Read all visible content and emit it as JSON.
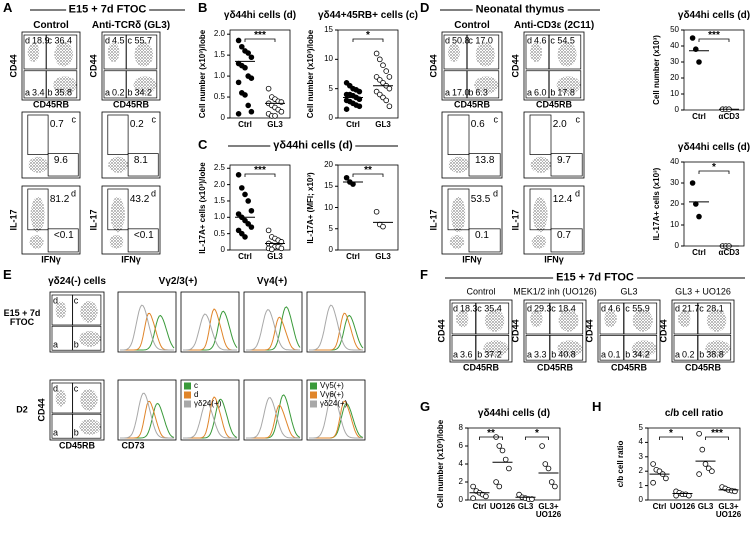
{
  "figure": {
    "quadrant_letters": [
      "a",
      "b",
      "c",
      "d"
    ],
    "A": {
      "label": "A",
      "title": "E15 + 7d FTOC",
      "groups": [
        "Control",
        "Anti-TCRδ (GL3)"
      ],
      "cd44": "CD44",
      "cd45rb": "CD45RB",
      "il17": "IL-17",
      "ifng": "IFNγ",
      "quadrants": [
        {
          "a": "3.4",
          "b": "35.8",
          "c": "36.4",
          "d": "18.9"
        },
        {
          "a": "0.2",
          "b": "34.2",
          "c": "55.7",
          "d": "4.5"
        }
      ],
      "gate_c": [
        {
          "il17": "0.7",
          "ifng": "9.6"
        },
        {
          "il17": "0.2",
          "ifng": "8.1"
        }
      ],
      "gate_d": [
        {
          "il17": "81.2",
          "ifng": "<0.1"
        },
        {
          "il17": "43.2",
          "ifng": "<0.1"
        }
      ]
    },
    "B": {
      "label": "B",
      "plots": [
        {
          "title": "γδ44hi cells (d)",
          "ylabel": "Cell number (x10³)/lobe",
          "ylim": [
            0,
            2.1
          ],
          "yticks": [
            0,
            0.5,
            {
              "value": 1,
              "label": "1.0"
            },
            1.5,
            {
              "value": 2,
              "label": "2.0"
            }
          ],
          "significance": [
            "***"
          ],
          "series": [
            {
              "name": "Ctrl",
              "filled": true,
              "values": [
                1.85,
                1.7,
                1.6,
                1.55,
                1.45,
                1.3,
                1.25,
                1.2,
                1.0,
                0.95,
                0.85,
                0.6,
                0.55,
                0.3,
                0.15,
                0.1
              ],
              "mean": 1.35
            },
            {
              "name": "GL3",
              "filled": false,
              "values": [
                0.7,
                0.5,
                0.45,
                0.4,
                0.38,
                0.35,
                0.3,
                0.25,
                0.2,
                0.15,
                0.1,
                0.05,
                0.05
              ],
              "mean": 0.35
            }
          ]
        },
        {
          "title": "γδ44+45RB+ cells (c)",
          "ylabel": "Cell number (x10³)/lobe",
          "ylim": [
            0,
            15
          ],
          "yticks": [
            0,
            5,
            10,
            15
          ],
          "significance": [
            "*"
          ],
          "series": [
            {
              "name": "Ctrl",
              "filled": true,
              "values": [
                6,
                5.5,
                5,
                4.8,
                4.5,
                4,
                4,
                3.8,
                3.5,
                3.2,
                3,
                2.8,
                2.5,
                2.2,
                2,
                1.5
              ],
              "mean": 3.5
            },
            {
              "name": "GL3",
              "filled": false,
              "values": [
                11,
                10,
                9,
                8,
                7,
                7,
                6.5,
                6,
                5.5,
                5,
                4.5,
                4,
                3.5,
                3,
                2
              ],
              "mean": 5.5
            }
          ]
        }
      ]
    },
    "C": {
      "label": "C",
      "header": "γδ44hi cells (d)",
      "plots": [
        {
          "ylabel": "IL-17A+ cells (x10³)/lobe",
          "ylim": [
            0,
            2.6
          ],
          "yticks": [
            0,
            0.5,
            {
              "value": 1,
              "label": "1.0"
            },
            1.5,
            {
              "value": 2,
              "label": "2.0"
            },
            2.5
          ],
          "significance": [
            "***"
          ],
          "series": [
            {
              "name": "Ctrl",
              "filled": true,
              "values": [
                2.3,
                1.9,
                1.7,
                1.5,
                1.2,
                1.1,
                1.0,
                0.9,
                0.8,
                0.7,
                0.6,
                0.5,
                0.4
              ],
              "mean": 1.0
            },
            {
              "name": "GL3",
              "filled": false,
              "values": [
                0.6,
                0.4,
                0.35,
                0.3,
                0.25,
                0.2,
                0.15,
                0.1,
                0.1,
                0.05,
                0.05,
                0.02
              ],
              "mean": 0.2
            }
          ]
        },
        {
          "ylabel": "IL-17A+ (MFI; x10³)",
          "ylim": [
            0,
            20
          ],
          "yticks": [
            0,
            5,
            10,
            15,
            20
          ],
          "significance": [
            "**"
          ],
          "series": [
            {
              "name": "Ctrl",
              "filled": true,
              "values": [
                17,
                16,
                15.5
              ],
              "mean": 16
            },
            {
              "name": "GL3",
              "filled": false,
              "values": [
                9,
                6,
                5.5
              ],
              "mean": 6.5
            }
          ]
        }
      ]
    },
    "D": {
      "label": "D",
      "title": "Neonatal thymus",
      "groups": [
        "Control",
        "Anti-CD3ε (2C11)"
      ],
      "cd44": "CD44",
      "cd45rb": "CD45RB",
      "il17": "IL-17",
      "ifng": "IFNγ",
      "quadrants": [
        {
          "a": "17.0",
          "b": "6.3",
          "c": "17.0",
          "d": "50.8"
        },
        {
          "a": "6.0",
          "b": "17.8",
          "c": "54.5",
          "d": "4.6"
        }
      ],
      "gate_c": [
        {
          "il17": "0.6",
          "ifng": "13.8"
        },
        {
          "il17": "2.0",
          "ifng": "9.7"
        }
      ],
      "gate_d": [
        {
          "il17": "53.5",
          "ifng": "0.1"
        },
        {
          "il17": "12.4",
          "ifng": "0.7"
        }
      ],
      "plots": [
        {
          "title": "γδ44hi cells (d)",
          "ylabel": "Cell number (x10³)",
          "ylim": [
            0,
            50
          ],
          "yticks": [
            0,
            10,
            20,
            30,
            40,
            50
          ],
          "significance": [
            "***"
          ],
          "series": [
            {
              "name": "Ctrl",
              "filled": true,
              "values": [
                45,
                38,
                30
              ],
              "mean": 37
            },
            {
              "name": "αCD3",
              "filled": false,
              "values": [
                0.5,
                0.5,
                0.5
              ],
              "mean": 0.5
            }
          ]
        },
        {
          "title": "γδ44hi cells (d)",
          "ylabel": "IL-17A+ cells (x10³)",
          "ylim": [
            0,
            40
          ],
          "yticks": [
            0,
            10,
            20,
            30,
            40
          ],
          "significance": [
            "*"
          ],
          "series": [
            {
              "name": "Ctrl",
              "filled": true,
              "values": [
                30,
                20,
                14
              ],
              "mean": 21
            },
            {
              "name": "αCD3",
              "filled": false,
              "values": [
                0,
                0,
                0
              ],
              "mean": 0
            }
          ]
        }
      ]
    },
    "E": {
      "label": "E",
      "headers": [
        "γδ24(-) cells",
        "Vγ2/3(+)",
        "Vγ4(+)"
      ],
      "rows": [
        "E15 + 7d FTOC",
        "D2"
      ],
      "cd44": "CD44",
      "cd45rb": "CD45RB",
      "cd73": "CD73",
      "legends": [
        [
          {
            "name": "c",
            "color": "#3a9a3a"
          },
          {
            "name": "d",
            "color": "#e0852a"
          },
          {
            "name": "γδ24(+)",
            "color": "#a8a8a8"
          }
        ],
        [
          {
            "name": "Vγ5(+)",
            "color": "#3a9a3a"
          },
          {
            "name": "Vγ6(+)",
            "color": "#e0852a"
          },
          {
            "name": "γδ24(+)",
            "color": "#a8a8a8"
          }
        ]
      ]
    },
    "F": {
      "label": "F",
      "title": "E15 + 7d FTOC",
      "groups": [
        "Control",
        "MEK1/2 inh (UO126)",
        "GL3",
        "GL3 + UO126"
      ],
      "cd44": "CD44",
      "cd45rb": "CD45RB",
      "quadrants": [
        {
          "a": "3.6",
          "b": "37.2",
          "c": "35.4",
          "d": "18.3"
        },
        {
          "a": "3.3",
          "b": "40.8",
          "c": "18.4",
          "d": "29.3"
        },
        {
          "a": "0.1",
          "b": "34.2",
          "c": "55.9",
          "d": "4.6"
        },
        {
          "a": "0.2",
          "b": "38.8",
          "c": "28.1",
          "d": "21.7"
        }
      ]
    },
    "G": {
      "label": "G",
      "plot": {
        "title": "γδ44hi cells (d)",
        "ylabel": "Cell number (x10³)/lobe",
        "ylim": [
          0,
          8
        ],
        "yticks": [
          0,
          2,
          4,
          6,
          8
        ],
        "significance": [
          "**",
          "*"
        ],
        "series": [
          {
            "name": "Ctrl",
            "filled": false,
            "values": [
              1.5,
              1,
              0.8,
              0.6,
              0.4,
              0.2
            ],
            "mean": 0.8
          },
          {
            "name": "UO126",
            "filled": false,
            "values": [
              7,
              6,
              5.5,
              4.5,
              3.5,
              2,
              1.5
            ],
            "mean": 4.2
          },
          {
            "name": "GL3",
            "filled": false,
            "values": [
              0.6,
              0.3,
              0.2,
              0.1,
              0.1
            ],
            "mean": 0.3
          },
          {
            "name": "GL3+ UO126",
            "filled": false,
            "values": [
              6,
              4,
              3.5,
              2,
              1.5
            ],
            "mean": 3
          }
        ]
      }
    },
    "H": {
      "label": "H",
      "plot": {
        "title": "c/b cell ratio",
        "ylabel": "c/b cell ratio",
        "ylim": [
          0,
          5
        ],
        "yticks": [
          0,
          1,
          2,
          3,
          4,
          5
        ],
        "significance": [
          "*",
          "***"
        ],
        "series": [
          {
            "name": "Ctrl",
            "filled": false,
            "values": [
              2.5,
              2.1,
              2,
              1.8,
              1.5,
              1.2
            ],
            "mean": 1.8
          },
          {
            "name": "UO126",
            "filled": false,
            "values": [
              0.6,
              0.5,
              0.4,
              0.4,
              0.3,
              0.3
            ],
            "mean": 0.45
          },
          {
            "name": "GL3",
            "filled": false,
            "values": [
              4.6,
              3.5,
              2.5,
              2.2,
              2.0,
              1.8
            ],
            "mean": 2.7
          },
          {
            "name": "GL3+ UO126",
            "filled": false,
            "values": [
              0.9,
              0.8,
              0.7,
              0.65,
              0.6
            ],
            "mean": 0.7
          }
        ]
      }
    }
  }
}
